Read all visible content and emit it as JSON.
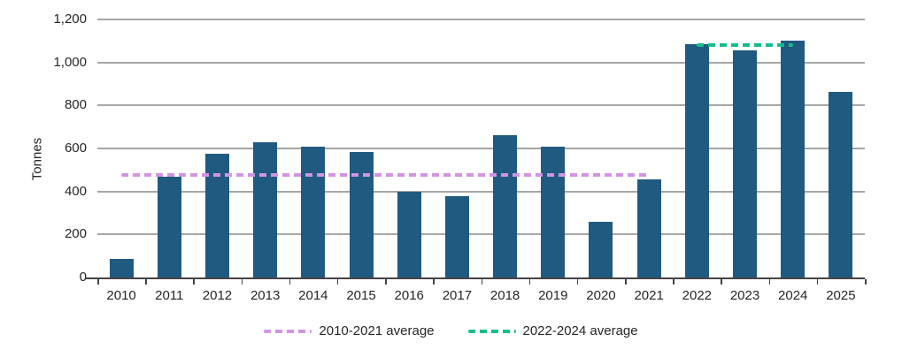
{
  "chart_data": {
    "type": "bar",
    "title": "",
    "xlabel": "",
    "ylabel": "Tonnes",
    "categories": [
      "2010",
      "2011",
      "2012",
      "2013",
      "2014",
      "2015",
      "2016",
      "2017",
      "2018",
      "2019",
      "2020",
      "2021",
      "2022",
      "2023",
      "2024",
      "2025"
    ],
    "values": [
      85,
      470,
      575,
      630,
      610,
      585,
      400,
      380,
      660,
      610,
      260,
      455,
      1085,
      1055,
      1100,
      865
    ],
    "ylim": [
      0,
      1200
    ],
    "ytick_interval": 200,
    "ytick_labels": [
      "0",
      "200",
      "400",
      "600",
      "800",
      "1,000",
      "1,200"
    ],
    "grid": true,
    "legend_position": "bottom",
    "bar_color": "#205a80",
    "grid_color": "#a6a6a6",
    "axis_color": "#454545",
    "text_color": "#262626",
    "reference_lines": [
      {
        "name": "2010-2021 average",
        "value": 477,
        "from": "2010",
        "to": "2021",
        "color": "#d294e3",
        "style": "dashed"
      },
      {
        "name": "2022-2024 average",
        "value": 1080,
        "from": "2022",
        "to": "2024",
        "color": "#15bd8c",
        "style": "dashed"
      }
    ]
  }
}
